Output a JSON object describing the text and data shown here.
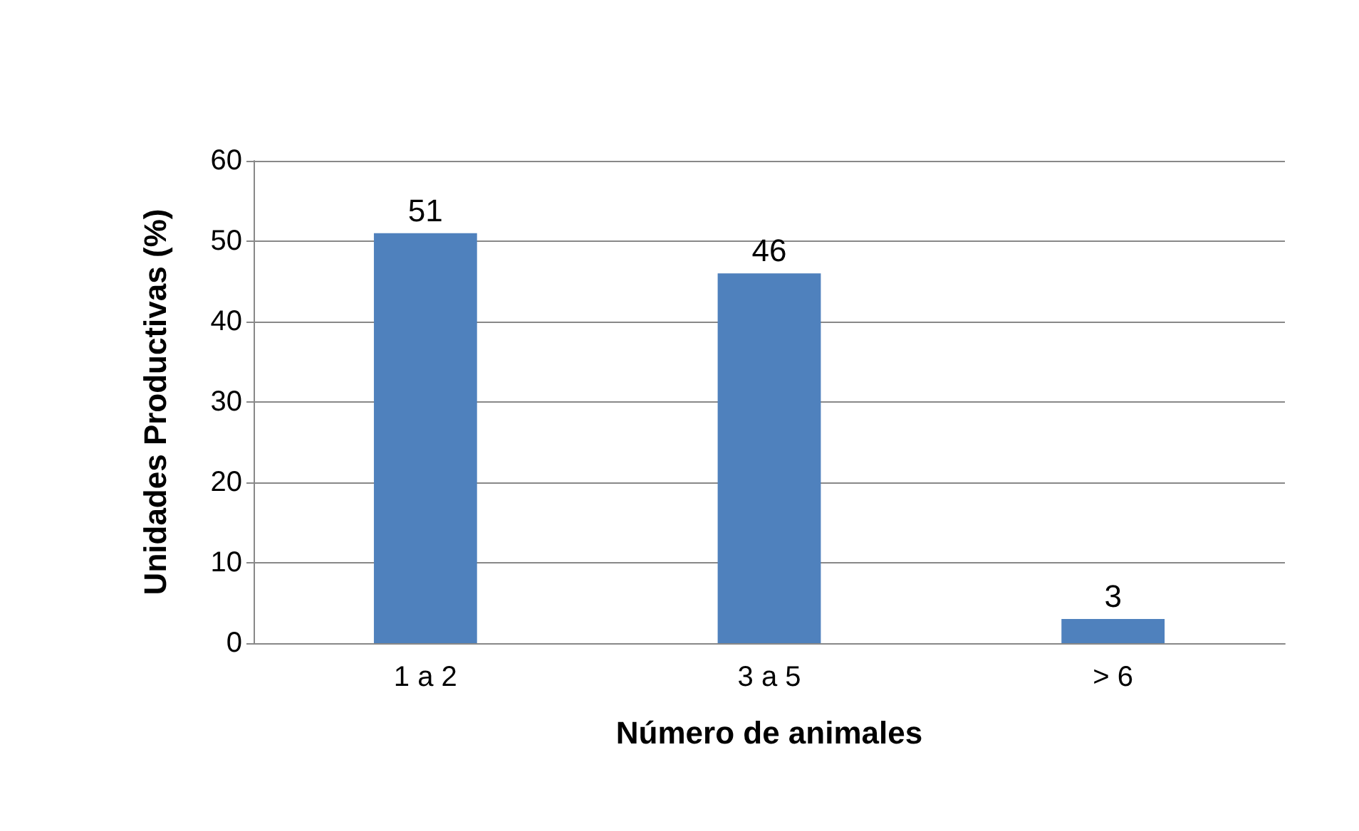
{
  "chart_data": {
    "type": "bar",
    "xlabel": "Número de animales",
    "ylabel": "Unidades Productivas (%)",
    "categories": [
      "1 a 2",
      "3 a 5",
      "> 6"
    ],
    "values": [
      51,
      46,
      3
    ],
    "color": "#4f81bd",
    "ylim": [
      0,
      60
    ],
    "yticks": [
      0,
      10,
      20,
      30,
      40,
      50,
      60
    ],
    "grid": "y",
    "data_labels": true
  }
}
